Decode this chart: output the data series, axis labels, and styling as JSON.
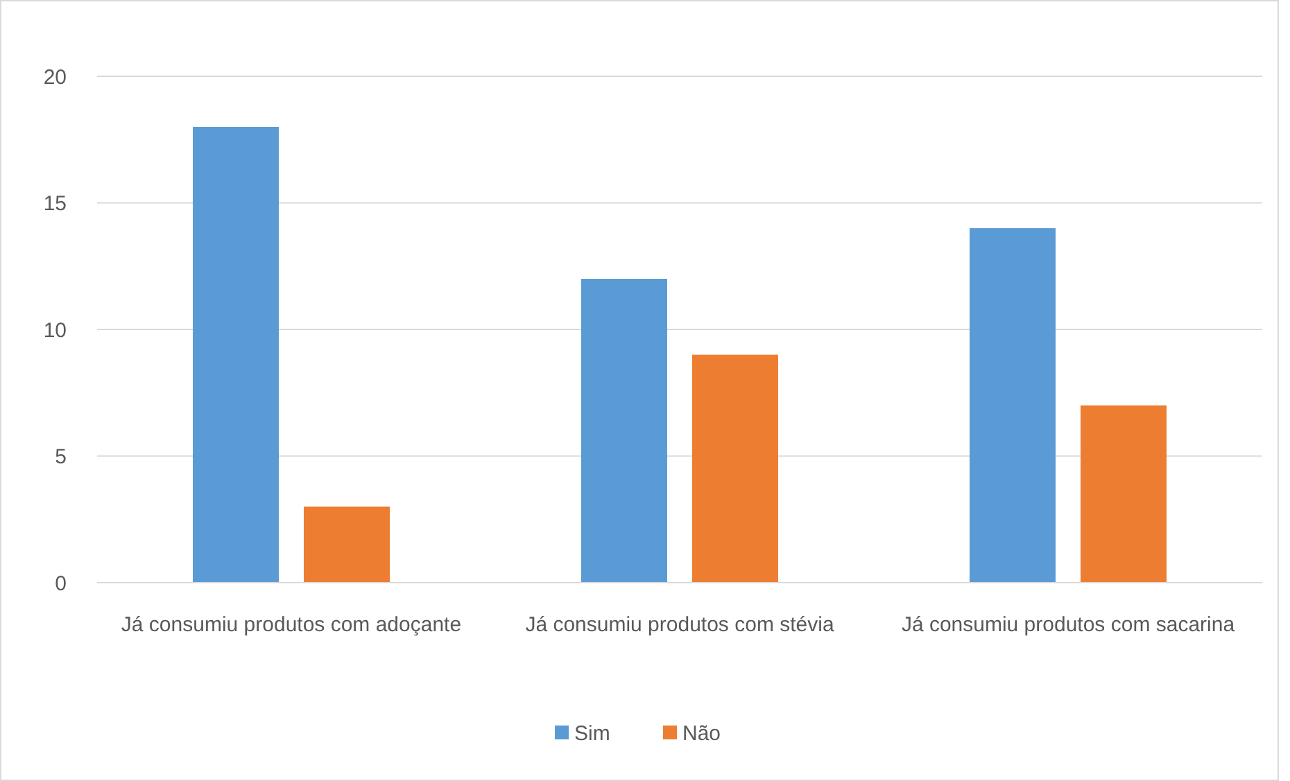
{
  "chart_data": {
    "type": "bar",
    "categories": [
      "Já consumiu produtos com adoçante",
      "Já consumiu produtos com stévia",
      "Já consumiu produtos com sacarina"
    ],
    "series": [
      {
        "name": "Sim",
        "color": "#5b9bd5",
        "values": [
          18,
          12,
          14
        ]
      },
      {
        "name": "Não",
        "color": "#ed7d31",
        "values": [
          3,
          9,
          7
        ]
      }
    ],
    "ylim": [
      0,
      20
    ],
    "yticks": [
      0,
      5,
      10,
      15,
      20
    ],
    "grid": "y",
    "legend": "bottom"
  }
}
